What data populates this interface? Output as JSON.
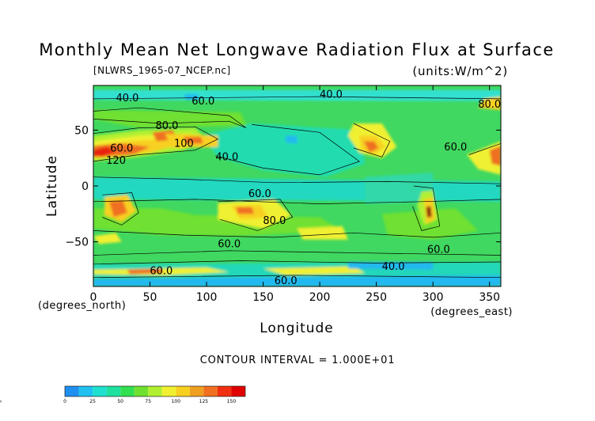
{
  "chart_data": {
    "type": "heatmap",
    "title": "Monthly Mean Net Longwave Radiation Flux at Surface",
    "subtitle": "[NLWRS_1965-07_NCEP.nc]",
    "units": "(units:W/m^2)",
    "xlabel": "Longitude",
    "ylabel": "Latitude",
    "x_units": "(degrees_east)",
    "y_units": "(degrees_north)",
    "xlim": [
      0,
      360
    ],
    "ylim": [
      -90,
      90
    ],
    "x_ticks": [
      0,
      50,
      100,
      150,
      200,
      250,
      300,
      350
    ],
    "y_ticks": [
      50,
      0,
      -50
    ],
    "contour_interval_text": "CONTOUR INTERVAL = 1.000E+01",
    "colorbar": {
      "levels": [
        0,
        12.5,
        25,
        37.5,
        50,
        62.5,
        75,
        87.5,
        100,
        112.5,
        125,
        137.5,
        150,
        162.5
      ],
      "colors": [
        "#2090f0",
        "#20c0f0",
        "#20e0d0",
        "#20e0a0",
        "#30e050",
        "#70e030",
        "#b0f030",
        "#f0f030",
        "#f8d020",
        "#f0a020",
        "#f07020",
        "#f03010",
        "#e00000"
      ],
      "tick_labels": [
        "0",
        "25",
        "50",
        "75",
        "100",
        "125",
        "150",
        "∞"
      ]
    },
    "contour_labels": [
      {
        "text": "40.0",
        "lon": 30,
        "lat": 76
      },
      {
        "text": "60.0",
        "lon": 97,
        "lat": 73
      },
      {
        "text": "40.0",
        "lon": 210,
        "lat": 79
      },
      {
        "text": "80.0",
        "lon": 65,
        "lat": 51
      },
      {
        "text": "60.0",
        "lon": 25,
        "lat": 31
      },
      {
        "text": "100",
        "lon": 80,
        "lat": 35
      },
      {
        "text": "120",
        "lon": 20,
        "lat": 20
      },
      {
        "text": "60.0",
        "lon": 320,
        "lat": 32
      },
      {
        "text": "80.0",
        "lon": 350,
        "lat": 70
      },
      {
        "text": "40.0",
        "lon": 118,
        "lat": 23
      },
      {
        "text": "60.0",
        "lon": 147,
        "lat": -10
      },
      {
        "text": "80.0",
        "lon": 160,
        "lat": -34
      },
      {
        "text": "60.0",
        "lon": 120,
        "lat": -55
      },
      {
        "text": "60.0",
        "lon": 305,
        "lat": -60
      },
      {
        "text": "60.0",
        "lon": 60,
        "lat": -79
      },
      {
        "text": "40.0",
        "lon": 265,
        "lat": -75
      },
      {
        "text": "60.0",
        "lon": 170,
        "lat": -88
      }
    ]
  }
}
